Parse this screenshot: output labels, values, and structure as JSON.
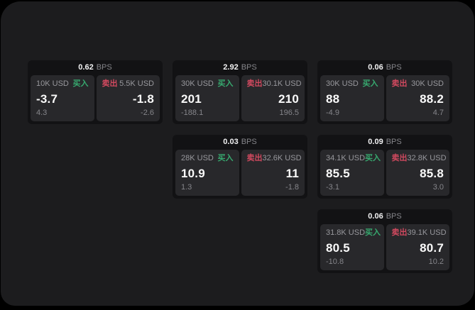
{
  "labels": {
    "buy": "买入",
    "sell": "卖出",
    "bps_unit": "BPS"
  },
  "colors": {
    "buy": "#37a96f",
    "sell": "#d1495f",
    "container_bg": "#1c1c1e",
    "card_bg": "#121214",
    "panel_bg": "#28282b"
  },
  "cards": [
    {
      "bps": "0.62",
      "row": 1,
      "col": 1,
      "buy": {
        "amount": "10K USD",
        "value": "-3.7",
        "sub": "4.3"
      },
      "sell": {
        "amount": "5.5K USD",
        "value": "-1.8",
        "sub": "-2.6"
      }
    },
    {
      "bps": "2.92",
      "row": 1,
      "col": 2,
      "buy": {
        "amount": "30K USD",
        "value": "201",
        "sub": "-188.1"
      },
      "sell": {
        "amount": "30.1K USD",
        "value": "210",
        "sub": "196.5"
      }
    },
    {
      "bps": "0.06",
      "row": 1,
      "col": 3,
      "buy": {
        "amount": "30K USD",
        "value": "88",
        "sub": "-4.9"
      },
      "sell": {
        "amount": "30K USD",
        "value": "88.2",
        "sub": "4.7"
      }
    },
    {
      "bps": "0.03",
      "row": 2,
      "col": 2,
      "buy": {
        "amount": "28K USD",
        "value": "10.9",
        "sub": "1.3"
      },
      "sell": {
        "amount": "32.6K USD",
        "value": "11",
        "sub": "-1.8"
      }
    },
    {
      "bps": "0.09",
      "row": 2,
      "col": 3,
      "buy": {
        "amount": "34.1K USD",
        "value": "85.5",
        "sub": "-3.1"
      },
      "sell": {
        "amount": "32.8K USD",
        "value": "85.8",
        "sub": "3.0"
      }
    },
    {
      "bps": "0.06",
      "row": 3,
      "col": 3,
      "buy": {
        "amount": "31.8K USD",
        "value": "80.5",
        "sub": "-10.8"
      },
      "sell": {
        "amount": "39.1K USD",
        "value": "80.7",
        "sub": "10.2"
      }
    }
  ]
}
